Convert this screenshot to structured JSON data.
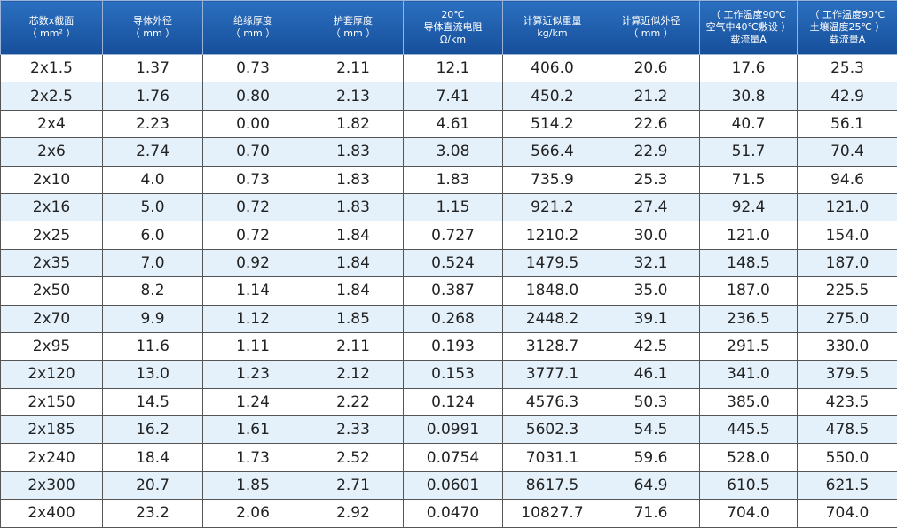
{
  "table": {
    "header": [
      [
        "芯数x截面",
        "（ mm² ）"
      ],
      [
        "导体外径",
        "（ mm ）"
      ],
      [
        "绝缘厚度",
        "（ mm ）"
      ],
      [
        "护套厚度",
        "（ mm ）"
      ],
      [
        "20℃",
        "导体直流电阻",
        "Ω/km"
      ],
      [
        "计算近似重量",
        "kg/km"
      ],
      [
        "计算近似外径",
        "（ mm ）"
      ],
      [
        "（ 工作温度90℃",
        "空气中40℃敷设 ）",
        "载流量A"
      ],
      [
        "（ 工作温度90℃",
        "土壤温度25℃ ）",
        "载流量A"
      ]
    ],
    "rows": [
      [
        "2x1.5",
        "1.37",
        "0.73",
        "2.11",
        "12.1",
        "406.0",
        "20.6",
        "17.6",
        "25.3"
      ],
      [
        "2x2.5",
        "1.76",
        "0.80",
        "2.13",
        "7.41",
        "450.2",
        "21.2",
        "30.8",
        "42.9"
      ],
      [
        "2x4",
        "2.23",
        "0.00",
        "1.82",
        "4.61",
        "514.2",
        "22.6",
        "40.7",
        "56.1"
      ],
      [
        "2x6",
        "2.74",
        "0.70",
        "1.83",
        "3.08",
        "566.4",
        "22.9",
        "51.7",
        "70.4"
      ],
      [
        "2x10",
        "4.0",
        "0.73",
        "1.83",
        "1.83",
        "735.9",
        "25.3",
        "71.5",
        "94.6"
      ],
      [
        "2x16",
        "5.0",
        "0.72",
        "1.83",
        "1.15",
        "921.2",
        "27.4",
        "92.4",
        "121.0"
      ],
      [
        "2x25",
        "6.0",
        "0.72",
        "1.84",
        "0.727",
        "1210.2",
        "30.0",
        "121.0",
        "154.0"
      ],
      [
        "2x35",
        "7.0",
        "0.92",
        "1.84",
        "0.524",
        "1479.5",
        "32.1",
        "148.5",
        "187.0"
      ],
      [
        "2x50",
        "8.2",
        "1.14",
        "1.84",
        "0.387",
        "1848.0",
        "35.0",
        "187.0",
        "225.5"
      ],
      [
        "2x70",
        "9.9",
        "1.12",
        "1.85",
        "0.268",
        "2448.2",
        "39.1",
        "236.5",
        "275.0"
      ],
      [
        "2x95",
        "11.6",
        "1.11",
        "2.11",
        "0.193",
        "3128.7",
        "42.5",
        "291.5",
        "330.0"
      ],
      [
        "2x120",
        "13.0",
        "1.23",
        "2.12",
        "0.153",
        "3777.1",
        "46.1",
        "341.0",
        "379.5"
      ],
      [
        "2x150",
        "14.5",
        "1.24",
        "2.22",
        "0.124",
        "4576.3",
        "50.3",
        "385.0",
        "423.5"
      ],
      [
        "2x185",
        "16.2",
        "1.61",
        "2.33",
        "0.0991",
        "5602.3",
        "54.5",
        "445.5",
        "478.5"
      ],
      [
        "2x240",
        "18.4",
        "1.73",
        "2.52",
        "0.0754",
        "7031.1",
        "59.6",
        "528.0",
        "550.0"
      ],
      [
        "2x300",
        "20.7",
        "1.85",
        "2.71",
        "0.0601",
        "8617.5",
        "64.9",
        "610.5",
        "621.5"
      ],
      [
        "2x400",
        "23.2",
        "2.06",
        "2.92",
        "0.0470",
        "10827.7",
        "71.6",
        "704.0",
        "704.0"
      ]
    ]
  }
}
